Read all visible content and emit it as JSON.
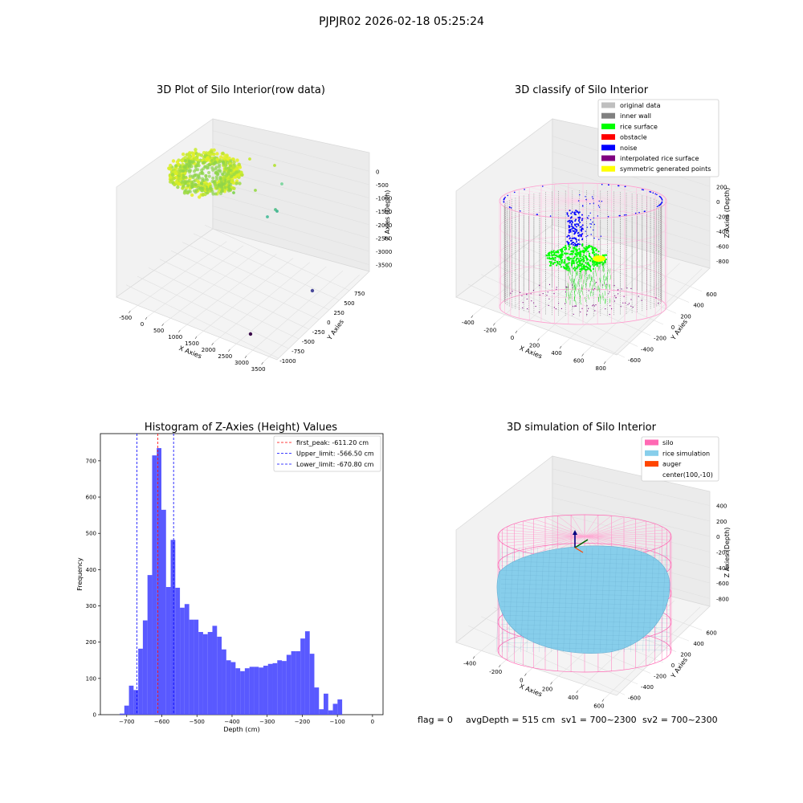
{
  "figure": {
    "suptitle": "PJPJR02 2026-02-18 05:25:24",
    "footer": {
      "flag": "flag = 0",
      "avg_depth": "avgDepth = 515 cm",
      "sv1": "sv1 = 700~2300",
      "sv2": "sv2 = 700~2300"
    }
  },
  "colors": {
    "histogram_bar": "#5050ff",
    "first_peak_line": "#ff0000",
    "limit_line": "#0000ff",
    "original_data": "#bfbfbf",
    "inner_wall": "#808080",
    "rice_surface": "#00ff00",
    "obstacle": "#ff0000",
    "noise": "#0000ff",
    "interpolated_rice_surface": "#800080",
    "symmetric_generated_points": "#ffff00",
    "silo": "#ff69b4",
    "rice_simulation": "#87ceeb",
    "auger": "#ff4500"
  },
  "chart_data": [
    {
      "type": "scatter",
      "subtype": "3d",
      "title": "3D Plot of Silo Interior(row data)",
      "xlabel": "X Axies",
      "ylabel": "Y Axies",
      "zlabel": "Z Axies (Depth)",
      "x_ticks": [
        "-500",
        "0",
        "500",
        "1000",
        "1500",
        "2000",
        "2500",
        "3000",
        "3500"
      ],
      "y_ticks": [
        "-1000",
        "-750",
        "-500",
        "-250",
        "0",
        "250",
        "500",
        "750"
      ],
      "z_ticks": [
        "0",
        "-500",
        "-1000",
        "-1500",
        "-2000",
        "-2500",
        "-3000",
        "-3500"
      ],
      "outliers": [
        {
          "x": 500,
          "y": 600,
          "z": -100
        },
        {
          "x": 900,
          "y": 500,
          "z": -300
        },
        {
          "x": 1200,
          "y": 400,
          "z": -500
        },
        {
          "x": 1500,
          "y": 200,
          "z": -800
        },
        {
          "x": 2000,
          "y": 100,
          "z": -1100
        },
        {
          "x": 2300,
          "y": 0,
          "z": -1300
        },
        {
          "x": 2400,
          "y": 0,
          "z": -1500
        },
        {
          "x": 3000,
          "y": -300,
          "z": -3000
        },
        {
          "x": 3200,
          "y": -800,
          "z": -3500
        }
      ]
    },
    {
      "type": "scatter",
      "subtype": "3d",
      "title": "3D classify of Silo Interior",
      "xlabel": "X Axies",
      "ylabel": "Y Axies",
      "zlabel": "Z Axies (Depth)",
      "x_ticks": [
        "-400",
        "-200",
        "0",
        "200",
        "400",
        "600",
        "800"
      ],
      "y_ticks": [
        "-600",
        "-400",
        "-200",
        "0",
        "200",
        "400",
        "600"
      ],
      "z_ticks": [
        "200",
        "0",
        "-200",
        "-400",
        "-600",
        "-800"
      ],
      "legend": [
        {
          "label": "original data",
          "color": "#bfbfbf"
        },
        {
          "label": "inner wall",
          "color": "#808080"
        },
        {
          "label": "rice surface",
          "color": "#00ff00"
        },
        {
          "label": "obstacle",
          "color": "#ff0000"
        },
        {
          "label": "noise",
          "color": "#0000ff"
        },
        {
          "label": "interpolated rice surface",
          "color": "#800080"
        },
        {
          "label": "symmetric generated points",
          "color": "#ffff00"
        }
      ],
      "legend_position": "top-right"
    },
    {
      "type": "bar",
      "subtype": "histogram",
      "title": "Histogram of Z-Axies (Height) Values",
      "xlabel": "Depth (cm)",
      "ylabel": "Frequency",
      "xlim": [
        -775,
        30
      ],
      "ylim": [
        0,
        775
      ],
      "x_ticks": [
        -700,
        -600,
        -500,
        -400,
        -300,
        -200,
        -100,
        0
      ],
      "y_ticks": [
        0,
        100,
        200,
        300,
        400,
        500,
        600,
        700
      ],
      "bin_width": 13.2,
      "bin_start": -720,
      "values": [
        3,
        25,
        80,
        68,
        182,
        260,
        385,
        715,
        735,
        565,
        352,
        482,
        350,
        295,
        305,
        262,
        262,
        228,
        222,
        228,
        245,
        215,
        180,
        150,
        145,
        128,
        120,
        128,
        132,
        132,
        130,
        135,
        140,
        142,
        150,
        148,
        165,
        175,
        175,
        210,
        230,
        168,
        75,
        15,
        58,
        12,
        30,
        42
      ],
      "vlines": [
        {
          "label": "first_peak: -611.20 cm",
          "x": -611.2,
          "color": "#ff0000"
        },
        {
          "label": "Upper_limit: -566.50 cm",
          "x": -566.5,
          "color": "#0000ff"
        },
        {
          "label": "Lower_limit: -670.80 cm",
          "x": -670.8,
          "color": "#0000ff"
        }
      ],
      "legend_position": "top-right"
    },
    {
      "type": "area",
      "subtype": "3d-surface",
      "title": "3D simulation of Silo Interior",
      "xlabel": "X Axies",
      "ylabel": "Y Axies",
      "zlabel": "Z Axies (Depth)",
      "x_ticks": [
        "-400",
        "-200",
        "0",
        "200",
        "400",
        "600"
      ],
      "y_ticks": [
        "-600",
        "-400",
        "-200",
        "0",
        "200",
        "400",
        "600"
      ],
      "z_ticks": [
        "400",
        "200",
        "0",
        "-200",
        "-400",
        "-600",
        "-800"
      ],
      "legend": [
        {
          "label": "silo",
          "color": "#ff69b4"
        },
        {
          "label": "rice simulation",
          "color": "#87ceeb"
        },
        {
          "label": "auger",
          "color": "#ff4500"
        },
        {
          "label": "center(100,-10)",
          "color": ""
        }
      ],
      "legend_position": "top-right"
    }
  ]
}
